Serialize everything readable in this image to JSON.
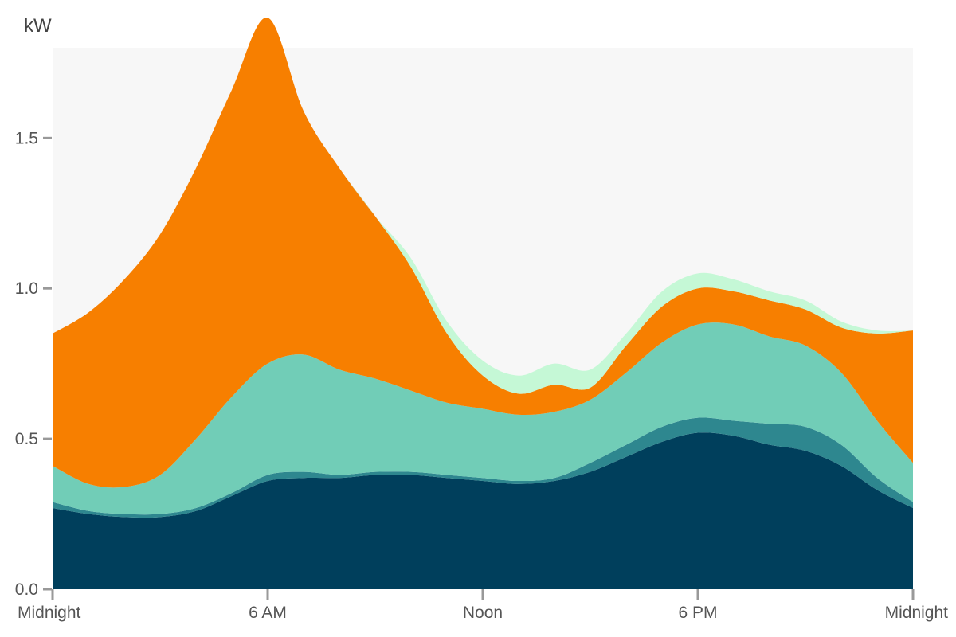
{
  "chart_data": {
    "type": "area",
    "stacked": true,
    "smooth": true,
    "ylabel": "kW",
    "ylim": [
      0,
      1.8
    ],
    "yticks": [
      0.0,
      0.5,
      1.0,
      1.5
    ],
    "ytick_labels": [
      "0.0",
      "0.5",
      "1.0",
      "1.5"
    ],
    "xlim": [
      0,
      24
    ],
    "xticks": [
      0,
      6,
      12,
      18,
      24
    ],
    "xtick_labels": [
      "Midnight",
      "6 AM",
      "Noon",
      "6 PM",
      "Midnight"
    ],
    "x": [
      0,
      1,
      2,
      3,
      4,
      5,
      6,
      7,
      8,
      9,
      10,
      11,
      12,
      13,
      14,
      15,
      16,
      17,
      18,
      19,
      20,
      21,
      22,
      23,
      24
    ],
    "background": "#f7f7f7",
    "series": [
      {
        "color": "#003f5c",
        "values": [
          0.27,
          0.25,
          0.24,
          0.24,
          0.26,
          0.31,
          0.36,
          0.37,
          0.37,
          0.38,
          0.38,
          0.37,
          0.36,
          0.35,
          0.36,
          0.39,
          0.44,
          0.49,
          0.52,
          0.51,
          0.48,
          0.46,
          0.41,
          0.33,
          0.27
        ]
      },
      {
        "color": "#2e878f",
        "values": [
          0.02,
          0.01,
          0.01,
          0.01,
          0.01,
          0.01,
          0.02,
          0.02,
          0.01,
          0.01,
          0.01,
          0.01,
          0.01,
          0.01,
          0.01,
          0.03,
          0.04,
          0.05,
          0.05,
          0.05,
          0.07,
          0.08,
          0.07,
          0.04,
          0.02
        ]
      },
      {
        "color": "#71cdb7",
        "values": [
          0.12,
          0.09,
          0.09,
          0.13,
          0.23,
          0.32,
          0.37,
          0.39,
          0.35,
          0.31,
          0.27,
          0.24,
          0.23,
          0.22,
          0.22,
          0.21,
          0.24,
          0.28,
          0.31,
          0.32,
          0.29,
          0.27,
          0.24,
          0.19,
          0.13
        ]
      },
      {
        "color": "#f77f00",
        "values": [
          0.44,
          0.57,
          0.69,
          0.8,
          0.9,
          1.02,
          1.15,
          0.81,
          0.67,
          0.54,
          0.41,
          0.23,
          0.11,
          0.07,
          0.09,
          0.04,
          0.09,
          0.12,
          0.12,
          0.11,
          0.12,
          0.12,
          0.15,
          0.29,
          0.44
        ]
      },
      {
        "color": "#c5f8d6",
        "values": [
          0.0,
          0.0,
          0.0,
          0.0,
          0.0,
          0.0,
          0.0,
          0.0,
          0.0,
          0.0,
          0.03,
          0.04,
          0.05,
          0.06,
          0.07,
          0.06,
          0.04,
          0.05,
          0.05,
          0.04,
          0.03,
          0.03,
          0.02,
          0.01,
          0.0
        ]
      }
    ]
  }
}
